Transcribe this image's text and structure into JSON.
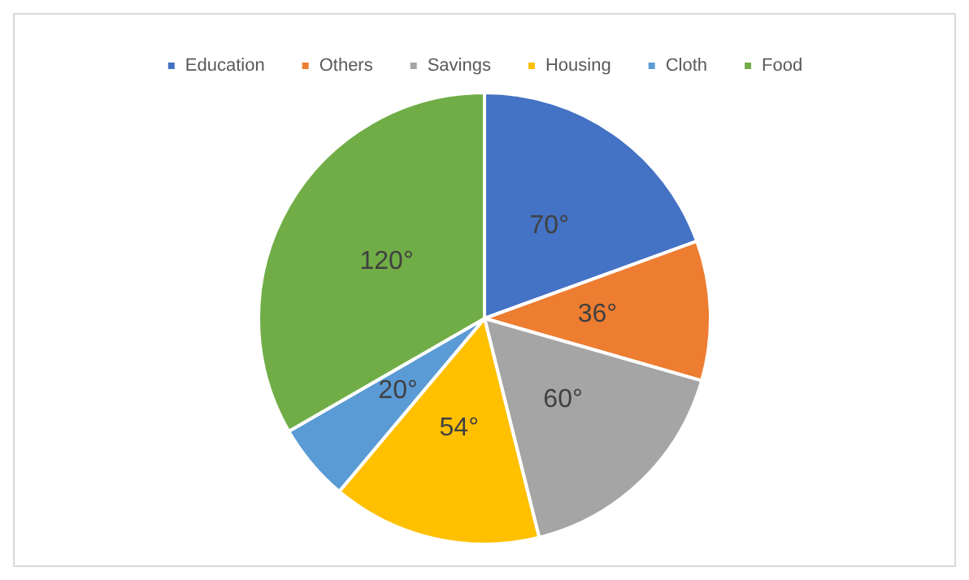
{
  "chart_data": {
    "type": "pie",
    "categories": [
      "Education",
      "Others",
      "Savings",
      "Housing",
      "Cloth",
      "Food"
    ],
    "values": [
      70,
      36,
      60,
      54,
      20,
      120
    ],
    "value_labels": [
      "70°",
      "36°",
      "60°",
      "54°",
      "20°",
      "120°"
    ],
    "colors": [
      "#4472c4",
      "#ed7d31",
      "#a5a5a5",
      "#ffc000",
      "#5b9bd5",
      "#70ad47"
    ],
    "legend": "top"
  }
}
